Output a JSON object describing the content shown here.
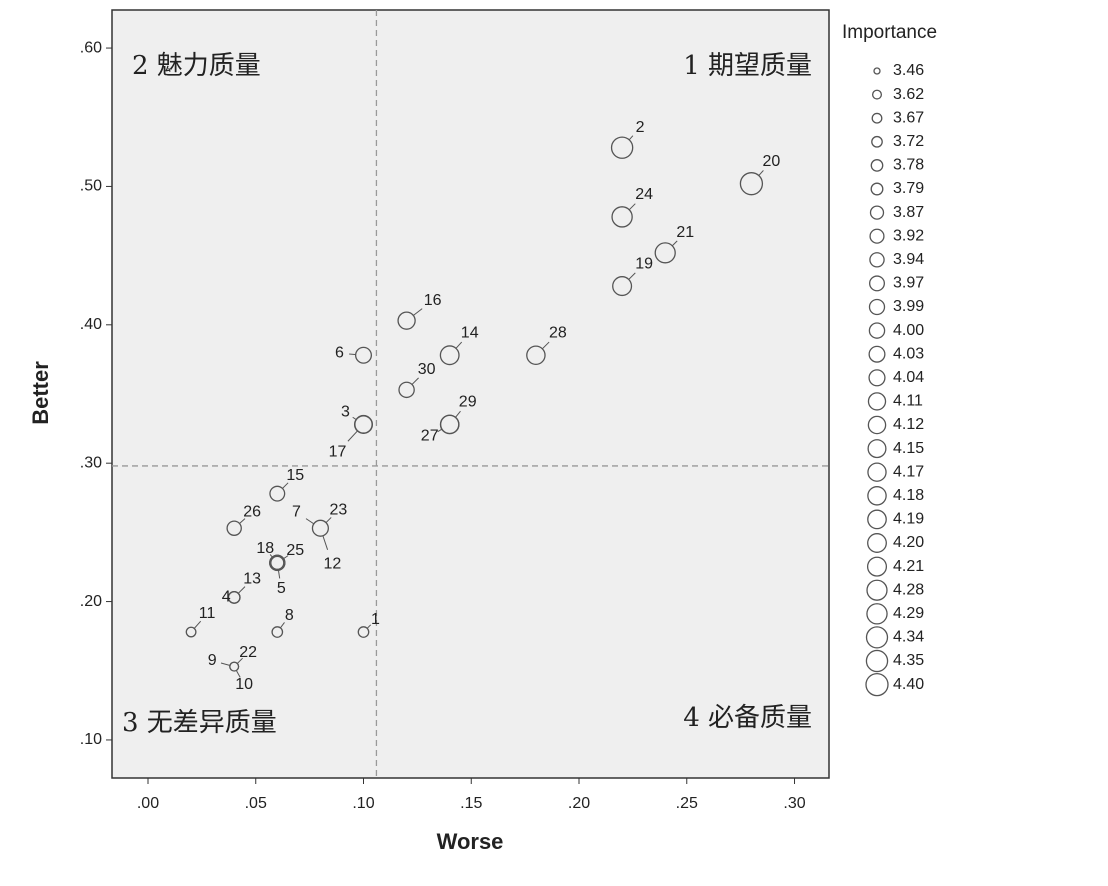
{
  "chart_data": {
    "type": "scatter",
    "x_label": "Worse",
    "y_label": "Better",
    "xlim": [
      -0.0167,
      0.316
    ],
    "ylim": [
      0.0725,
      0.6275
    ],
    "xticks": [
      {
        "value": 0,
        "label": ".00"
      },
      {
        "value": 0.05,
        "label": ".05"
      },
      {
        "value": 0.1,
        "label": ".10"
      },
      {
        "value": 0.15,
        "label": ".15"
      },
      {
        "value": 0.2,
        "label": ".20"
      },
      {
        "value": 0.25,
        "label": ".25"
      },
      {
        "value": 0.3,
        "label": ".30"
      }
    ],
    "yticks": [
      {
        "value": 0.1,
        "label": ".10"
      },
      {
        "value": 0.2,
        "label": ".20"
      },
      {
        "value": 0.3,
        "label": ".30"
      },
      {
        "value": 0.4,
        "label": ".40"
      },
      {
        "value": 0.5,
        "label": ".50"
      },
      {
        "value": 0.6,
        "label": ".60"
      }
    ],
    "x_ref": 0.106,
    "y_ref": 0.298,
    "quadrants": [
      "1 期望质量",
      "2 魅力质量",
      "3 无差异质量",
      "4 必备质量"
    ],
    "legend_title": "Importance",
    "legend_sizes": [
      3.46,
      3.62,
      3.67,
      3.72,
      3.78,
      3.79,
      3.87,
      3.92,
      3.94,
      3.97,
      3.99,
      {
        "value": 4,
        "label": "4.00"
      },
      4.03,
      4.04,
      4.11,
      4.12,
      4.15,
      4.17,
      4.18,
      4.19,
      {
        "value": 4.2,
        "label": "4.20"
      },
      4.21,
      4.28,
      4.29,
      4.34,
      4.35,
      {
        "value": 4.4,
        "label": "4.40"
      }
    ],
    "points": [
      {
        "label": "2",
        "x": 0.22,
        "y": 0.528,
        "size": 4.35
      },
      {
        "label": "20",
        "x": 0.28,
        "y": 0.502,
        "size": 4.4
      },
      {
        "label": "24",
        "x": 0.22,
        "y": 0.478,
        "size": 4.29
      },
      {
        "label": "21",
        "x": 0.24,
        "y": 0.452,
        "size": 4.28
      },
      {
        "label": "19",
        "x": 0.22,
        "y": 0.428,
        "size": 4.21
      },
      {
        "label": "16",
        "x": 0.12,
        "y": 0.403,
        "size": 4.11
      },
      {
        "label": "14",
        "x": 0.14,
        "y": 0.378,
        "size": 4.2
      },
      {
        "label": "28",
        "x": 0.18,
        "y": 0.378,
        "size": 4.18
      },
      {
        "label": "6",
        "x": 0.1,
        "y": 0.378,
        "size": 4.03
      },
      {
        "label": "30",
        "x": 0.12,
        "y": 0.353,
        "size": 4.0
      },
      {
        "label": "3",
        "x": 0.1,
        "y": 0.328,
        "size": 4.15
      },
      {
        "label": "29",
        "x": 0.14,
        "y": 0.328,
        "size": 4.19
      },
      {
        "label": "27",
        "x": 0.14,
        "y": 0.328,
        "size": 4.17
      },
      {
        "label": "17",
        "x": 0.1,
        "y": 0.328,
        "size": 4.12
      },
      {
        "label": "15",
        "x": 0.06,
        "y": 0.278,
        "size": 3.97
      },
      {
        "label": "26",
        "x": 0.04,
        "y": 0.253,
        "size": 3.94
      },
      {
        "label": "7",
        "x": 0.08,
        "y": 0.253,
        "size": 3.92
      },
      {
        "label": "23",
        "x": 0.08,
        "y": 0.253,
        "size": 3.99
      },
      {
        "label": "12",
        "x": 0.08,
        "y": 0.253,
        "size": 4.04
      },
      {
        "label": "18",
        "x": 0.06,
        "y": 0.228,
        "size": 3.99
      },
      {
        "label": "25",
        "x": 0.06,
        "y": 0.228,
        "size": 4.0
      },
      {
        "label": "5",
        "x": 0.06,
        "y": 0.228,
        "size": 3.87
      },
      {
        "label": "13",
        "x": 0.04,
        "y": 0.203,
        "size": 3.79
      },
      {
        "label": "4",
        "x": 0.04,
        "y": 0.203,
        "size": 3.78
      },
      {
        "label": "11",
        "x": 0.02,
        "y": 0.178,
        "size": 3.67
      },
      {
        "label": "8",
        "x": 0.06,
        "y": 0.178,
        "size": 3.72
      },
      {
        "label": "1",
        "x": 0.1,
        "y": 0.178,
        "size": 3.72
      },
      {
        "label": "9",
        "x": 0.04,
        "y": 0.153,
        "size": 3.46
      },
      {
        "label": "22",
        "x": 0.04,
        "y": 0.153,
        "size": 3.62
      },
      {
        "label": "10",
        "x": 0.04,
        "y": 0.153,
        "size": 3.62
      }
    ]
  }
}
